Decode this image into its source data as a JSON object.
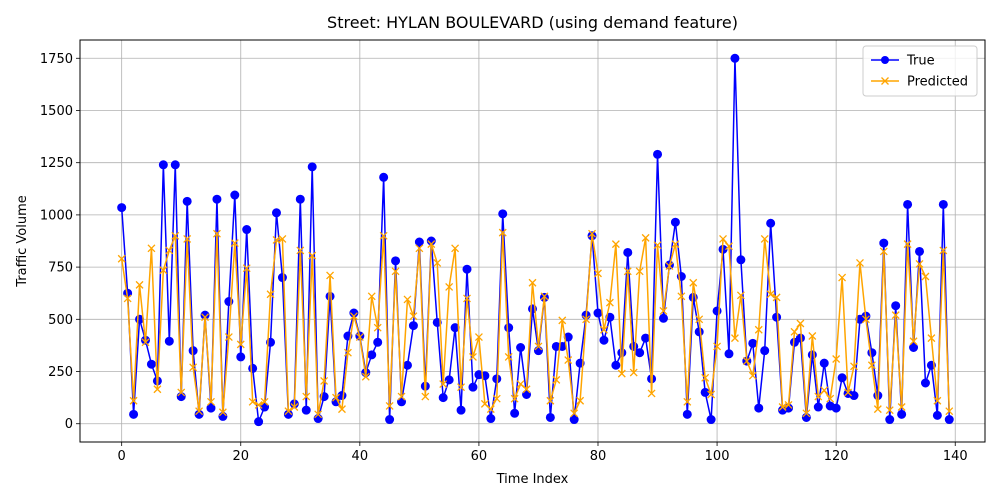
{
  "chart_data": {
    "type": "line",
    "title": "Street: HYLAN BOULEVARD (using demand feature)",
    "xlabel": "Time Index",
    "ylabel": "Traffic Volume",
    "xlim": [
      -7,
      145
    ],
    "ylim": [
      -87.5,
      1837.5
    ],
    "xticks": [
      0,
      20,
      40,
      60,
      80,
      100,
      120,
      140
    ],
    "yticks": [
      0,
      250,
      500,
      750,
      1000,
      1250,
      1500,
      1750
    ],
    "grid": true,
    "legend_position": "top-right",
    "series": [
      {
        "name": "True",
        "color": "#0000ff",
        "marker": "circle",
        "values": [
          1035,
          625,
          45,
          500,
          400,
          285,
          205,
          1240,
          395,
          1240,
          130,
          1065,
          350,
          45,
          520,
          75,
          1075,
          35,
          585,
          1095,
          320,
          930,
          265,
          10,
          80,
          390,
          1010,
          700,
          45,
          95,
          1075,
          65,
          1230,
          25,
          130,
          610,
          105,
          135,
          420,
          530,
          420,
          245,
          330,
          390,
          1180,
          20,
          780,
          105,
          280,
          470,
          870,
          180,
          875,
          485,
          125,
          210,
          460,
          65,
          740,
          175,
          235,
          230,
          25,
          215,
          1005,
          460,
          50,
          365,
          140,
          550,
          350,
          605,
          30,
          370,
          370,
          415,
          20,
          290,
          520,
          900,
          530,
          400,
          510,
          280,
          340,
          820,
          370,
          340,
          410,
          215,
          1290,
          505,
          760,
          965,
          705,
          45,
          605,
          440,
          150,
          20,
          540,
          835,
          335,
          1750,
          785,
          300,
          385,
          75,
          350,
          960,
          510,
          65,
          75,
          390,
          410,
          30,
          330,
          80,
          290,
          85,
          75,
          220,
          145,
          135,
          500,
          515,
          340,
          135,
          865,
          20,
          565,
          45,
          1050,
          365,
          825,
          195,
          280,
          40,
          1050,
          20
        ]
      },
      {
        "name": "Predicted",
        "color": "#ffa500",
        "marker": "x",
        "values": [
          790,
          600,
          110,
          665,
          390,
          840,
          165,
          735,
          830,
          900,
          150,
          885,
          270,
          60,
          510,
          105,
          910,
          55,
          415,
          865,
          380,
          745,
          105,
          90,
          105,
          620,
          880,
          885,
          60,
          80,
          830,
          130,
          805,
          45,
          205,
          710,
          125,
          70,
          340,
          515,
          415,
          225,
          610,
          460,
          900,
          85,
          730,
          130,
          595,
          515,
          840,
          130,
          860,
          770,
          190,
          655,
          840,
          175,
          600,
          320,
          415,
          95,
          70,
          120,
          915,
          320,
          120,
          190,
          165,
          675,
          370,
          610,
          110,
          210,
          495,
          305,
          50,
          110,
          500,
          910,
          720,
          450,
          580,
          860,
          240,
          730,
          245,
          730,
          890,
          145,
          855,
          540,
          755,
          860,
          610,
          105,
          675,
          500,
          220,
          140,
          370,
          885,
          850,
          410,
          615,
          300,
          230,
          450,
          885,
          620,
          605,
          80,
          90,
          440,
          480,
          50,
          420,
          130,
          160,
          120,
          310,
          700,
          150,
          275,
          770,
          500,
          280,
          70,
          825,
          65,
          520,
          80,
          860,
          395,
          765,
          705,
          410,
          110,
          830,
          60
        ]
      }
    ]
  }
}
